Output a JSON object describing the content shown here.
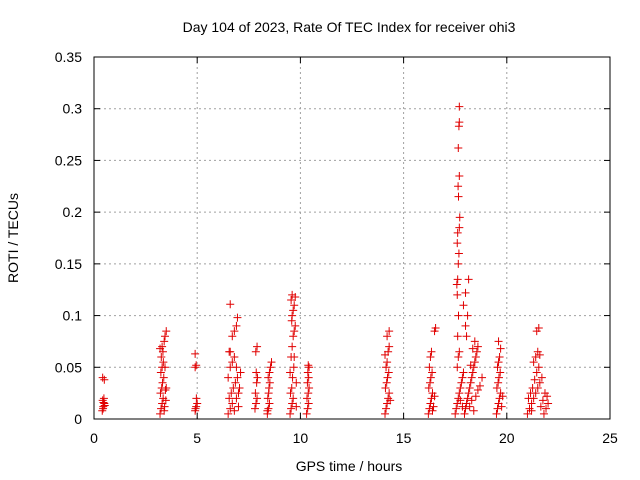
{
  "chart_data": {
    "type": "scatter",
    "title": "Day 104 of 2023, Rate Of TEC Index for receiver ohi3",
    "xlabel": "GPS time / hours",
    "ylabel": "ROTI / TECUs",
    "xlim": [
      0,
      25
    ],
    "ylim": [
      0,
      0.35
    ],
    "xticks": [
      0,
      5,
      10,
      15,
      20,
      25
    ],
    "xtick_labels": [
      "0",
      "5",
      "10",
      "15",
      "20",
      "25"
    ],
    "yticks": [
      0,
      0.05,
      0.1,
      0.15,
      0.2,
      0.25,
      0.3,
      0.35
    ],
    "ytick_labels": [
      "0",
      "0.05",
      "0.1",
      "0.15",
      "0.2",
      "0.25",
      "0.3",
      "0.35"
    ],
    "grid": true,
    "marker": "+",
    "color": "#e00000",
    "series": [
      {
        "name": "ohi3",
        "points": [
          [
            0.4,
            0.008
          ],
          [
            0.45,
            0.012
          ],
          [
            0.5,
            0.015
          ],
          [
            0.42,
            0.018
          ],
          [
            0.48,
            0.02
          ],
          [
            0.52,
            0.013
          ],
          [
            0.44,
            0.01
          ],
          [
            0.5,
            0.038
          ],
          [
            0.42,
            0.04
          ],
          [
            0.46,
            0.016
          ],
          [
            3.2,
            0.005
          ],
          [
            3.25,
            0.01
          ],
          [
            3.3,
            0.015
          ],
          [
            3.35,
            0.02
          ],
          [
            3.22,
            0.025
          ],
          [
            3.28,
            0.03
          ],
          [
            3.32,
            0.035
          ],
          [
            3.38,
            0.04
          ],
          [
            3.24,
            0.045
          ],
          [
            3.3,
            0.05
          ],
          [
            3.36,
            0.055
          ],
          [
            3.26,
            0.06
          ],
          [
            3.34,
            0.065
          ],
          [
            3.3,
            0.07
          ],
          [
            3.4,
            0.075
          ],
          [
            3.44,
            0.08
          ],
          [
            3.5,
            0.085
          ],
          [
            3.42,
            0.012
          ],
          [
            3.48,
            0.018
          ],
          [
            3.46,
            0.028
          ],
          [
            3.4,
            0.008
          ],
          [
            3.2,
            0.068
          ],
          [
            3.5,
            0.03
          ],
          [
            3.44,
            0.05
          ],
          [
            4.9,
            0.008
          ],
          [
            4.95,
            0.012
          ],
          [
            5.0,
            0.015
          ],
          [
            4.92,
            0.01
          ],
          [
            4.96,
            0.02
          ],
          [
            4.9,
            0.05
          ],
          [
            4.95,
            0.052
          ],
          [
            4.9,
            0.063
          ],
          [
            6.5,
            0.005
          ],
          [
            6.6,
            0.01
          ],
          [
            6.7,
            0.015
          ],
          [
            6.55,
            0.02
          ],
          [
            6.65,
            0.025
          ],
          [
            6.75,
            0.03
          ],
          [
            6.85,
            0.035
          ],
          [
            6.95,
            0.04
          ],
          [
            6.6,
            0.05
          ],
          [
            6.7,
            0.055
          ],
          [
            6.8,
            0.06
          ],
          [
            6.6,
            0.065
          ],
          [
            6.7,
            0.08
          ],
          [
            6.8,
            0.085
          ],
          [
            6.9,
            0.09
          ],
          [
            6.95,
            0.098
          ],
          [
            6.6,
            0.111
          ],
          [
            6.9,
            0.02
          ],
          [
            7.0,
            0.012
          ],
          [
            7.05,
            0.03
          ],
          [
            7.1,
            0.045
          ],
          [
            6.8,
            0.008
          ],
          [
            6.9,
            0.05
          ],
          [
            7.0,
            0.025
          ],
          [
            6.5,
            0.04
          ],
          [
            6.55,
            0.065
          ],
          [
            7.8,
            0.01
          ],
          [
            7.85,
            0.015
          ],
          [
            7.9,
            0.02
          ],
          [
            7.82,
            0.025
          ],
          [
            7.88,
            0.035
          ],
          [
            7.92,
            0.04
          ],
          [
            7.84,
            0.065
          ],
          [
            7.9,
            0.07
          ],
          [
            7.86,
            0.045
          ],
          [
            8.4,
            0.005
          ],
          [
            8.45,
            0.01
          ],
          [
            8.5,
            0.015
          ],
          [
            8.42,
            0.02
          ],
          [
            8.48,
            0.03
          ],
          [
            8.52,
            0.035
          ],
          [
            8.44,
            0.04
          ],
          [
            8.5,
            0.045
          ],
          [
            8.55,
            0.05
          ],
          [
            8.6,
            0.055
          ],
          [
            8.46,
            0.025
          ],
          [
            8.4,
            0.008
          ],
          [
            9.5,
            0.005
          ],
          [
            9.55,
            0.01
          ],
          [
            9.6,
            0.015
          ],
          [
            9.65,
            0.02
          ],
          [
            9.52,
            0.025
          ],
          [
            9.58,
            0.03
          ],
          [
            9.62,
            0.04
          ],
          [
            9.68,
            0.05
          ],
          [
            9.55,
            0.06
          ],
          [
            9.6,
            0.07
          ],
          [
            9.65,
            0.08
          ],
          [
            9.7,
            0.085
          ],
          [
            9.75,
            0.09
          ],
          [
            9.6,
            0.1
          ],
          [
            9.65,
            0.105
          ],
          [
            9.7,
            0.11
          ],
          [
            9.55,
            0.115
          ],
          [
            9.6,
            0.12
          ],
          [
            9.75,
            0.118
          ],
          [
            9.7,
            0.06
          ],
          [
            9.8,
            0.035
          ],
          [
            9.8,
            0.012
          ],
          [
            9.5,
            0.045
          ],
          [
            9.58,
            0.095
          ],
          [
            10.3,
            0.005
          ],
          [
            10.35,
            0.01
          ],
          [
            10.4,
            0.015
          ],
          [
            10.32,
            0.02
          ],
          [
            10.38,
            0.025
          ],
          [
            10.42,
            0.03
          ],
          [
            10.34,
            0.035
          ],
          [
            10.4,
            0.04
          ],
          [
            10.36,
            0.045
          ],
          [
            10.42,
            0.05
          ],
          [
            10.38,
            0.052
          ],
          [
            14.1,
            0.005
          ],
          [
            14.15,
            0.01
          ],
          [
            14.2,
            0.015
          ],
          [
            14.25,
            0.02
          ],
          [
            14.3,
            0.025
          ],
          [
            14.12,
            0.03
          ],
          [
            14.18,
            0.035
          ],
          [
            14.22,
            0.04
          ],
          [
            14.28,
            0.045
          ],
          [
            14.15,
            0.05
          ],
          [
            14.2,
            0.055
          ],
          [
            14.25,
            0.065
          ],
          [
            14.3,
            0.07
          ],
          [
            14.2,
            0.08
          ],
          [
            14.3,
            0.085
          ],
          [
            14.35,
            0.018
          ],
          [
            14.1,
            0.062
          ],
          [
            16.2,
            0.005
          ],
          [
            16.25,
            0.01
          ],
          [
            16.3,
            0.015
          ],
          [
            16.35,
            0.02
          ],
          [
            16.4,
            0.025
          ],
          [
            16.22,
            0.03
          ],
          [
            16.28,
            0.035
          ],
          [
            16.32,
            0.04
          ],
          [
            16.38,
            0.045
          ],
          [
            16.25,
            0.05
          ],
          [
            16.3,
            0.06
          ],
          [
            16.35,
            0.065
          ],
          [
            16.5,
            0.085
          ],
          [
            16.55,
            0.088
          ],
          [
            16.45,
            0.012
          ],
          [
            16.5,
            0.022
          ],
          [
            16.4,
            0.008
          ],
          [
            17.5,
            0.005
          ],
          [
            17.55,
            0.01
          ],
          [
            17.6,
            0.015
          ],
          [
            17.65,
            0.02
          ],
          [
            17.7,
            0.025
          ],
          [
            17.75,
            0.03
          ],
          [
            17.8,
            0.035
          ],
          [
            17.85,
            0.04
          ],
          [
            17.9,
            0.045
          ],
          [
            17.6,
            0.05
          ],
          [
            17.65,
            0.06
          ],
          [
            17.7,
            0.065
          ],
          [
            17.62,
            0.08
          ],
          [
            17.66,
            0.1
          ],
          [
            17.6,
            0.12
          ],
          [
            17.58,
            0.13
          ],
          [
            17.62,
            0.135
          ],
          [
            17.65,
            0.15
          ],
          [
            17.68,
            0.16
          ],
          [
            17.6,
            0.17
          ],
          [
            17.62,
            0.18
          ],
          [
            17.7,
            0.185
          ],
          [
            17.72,
            0.195
          ],
          [
            17.66,
            0.215
          ],
          [
            17.64,
            0.225
          ],
          [
            17.7,
            0.235
          ],
          [
            17.65,
            0.262
          ],
          [
            17.68,
            0.283
          ],
          [
            17.7,
            0.287
          ],
          [
            17.7,
            0.302
          ],
          [
            17.95,
            0.005
          ],
          [
            18.0,
            0.01
          ],
          [
            18.05,
            0.015
          ],
          [
            18.1,
            0.02
          ],
          [
            18.15,
            0.025
          ],
          [
            18.2,
            0.03
          ],
          [
            18.25,
            0.035
          ],
          [
            18.3,
            0.04
          ],
          [
            18.35,
            0.045
          ],
          [
            18.4,
            0.05
          ],
          [
            18.45,
            0.055
          ],
          [
            18.5,
            0.06
          ],
          [
            18.55,
            0.065
          ],
          [
            18.6,
            0.07
          ],
          [
            18.05,
            0.08
          ],
          [
            18.0,
            0.09
          ],
          [
            18.1,
            0.1
          ],
          [
            17.9,
            0.11
          ],
          [
            18.0,
            0.122
          ],
          [
            18.15,
            0.135
          ],
          [
            18.2,
            0.012
          ],
          [
            18.3,
            0.018
          ],
          [
            18.4,
            0.008
          ],
          [
            18.5,
            0.022
          ],
          [
            18.6,
            0.028
          ],
          [
            18.7,
            0.032
          ],
          [
            18.8,
            0.04
          ],
          [
            18.35,
            0.068
          ],
          [
            18.45,
            0.075
          ],
          [
            17.85,
            0.012
          ],
          [
            17.75,
            0.018
          ],
          [
            18.25,
            0.052
          ],
          [
            19.5,
            0.005
          ],
          [
            19.55,
            0.01
          ],
          [
            19.6,
            0.015
          ],
          [
            19.65,
            0.02
          ],
          [
            19.7,
            0.025
          ],
          [
            19.52,
            0.03
          ],
          [
            19.58,
            0.035
          ],
          [
            19.62,
            0.04
          ],
          [
            19.68,
            0.045
          ],
          [
            19.55,
            0.05
          ],
          [
            19.6,
            0.055
          ],
          [
            19.65,
            0.06
          ],
          [
            19.7,
            0.068
          ],
          [
            19.6,
            0.075
          ],
          [
            19.75,
            0.012
          ],
          [
            19.8,
            0.022
          ],
          [
            21.0,
            0.005
          ],
          [
            21.1,
            0.01
          ],
          [
            21.2,
            0.015
          ],
          [
            21.3,
            0.02
          ],
          [
            21.4,
            0.025
          ],
          [
            21.5,
            0.03
          ],
          [
            21.6,
            0.035
          ],
          [
            21.7,
            0.04
          ],
          [
            21.8,
            0.005
          ],
          [
            21.9,
            0.01
          ],
          [
            22.0,
            0.015
          ],
          [
            21.05,
            0.02
          ],
          [
            21.15,
            0.025
          ],
          [
            21.25,
            0.03
          ],
          [
            21.35,
            0.038
          ],
          [
            21.45,
            0.045
          ],
          [
            21.55,
            0.05
          ],
          [
            21.3,
            0.055
          ],
          [
            21.4,
            0.06
          ],
          [
            21.5,
            0.065
          ],
          [
            21.6,
            0.062
          ],
          [
            21.45,
            0.085
          ],
          [
            21.55,
            0.088
          ],
          [
            21.2,
            0.008
          ],
          [
            21.75,
            0.018
          ],
          [
            21.85,
            0.025
          ],
          [
            21.95,
            0.022
          ],
          [
            21.65,
            0.012
          ]
        ]
      }
    ]
  }
}
